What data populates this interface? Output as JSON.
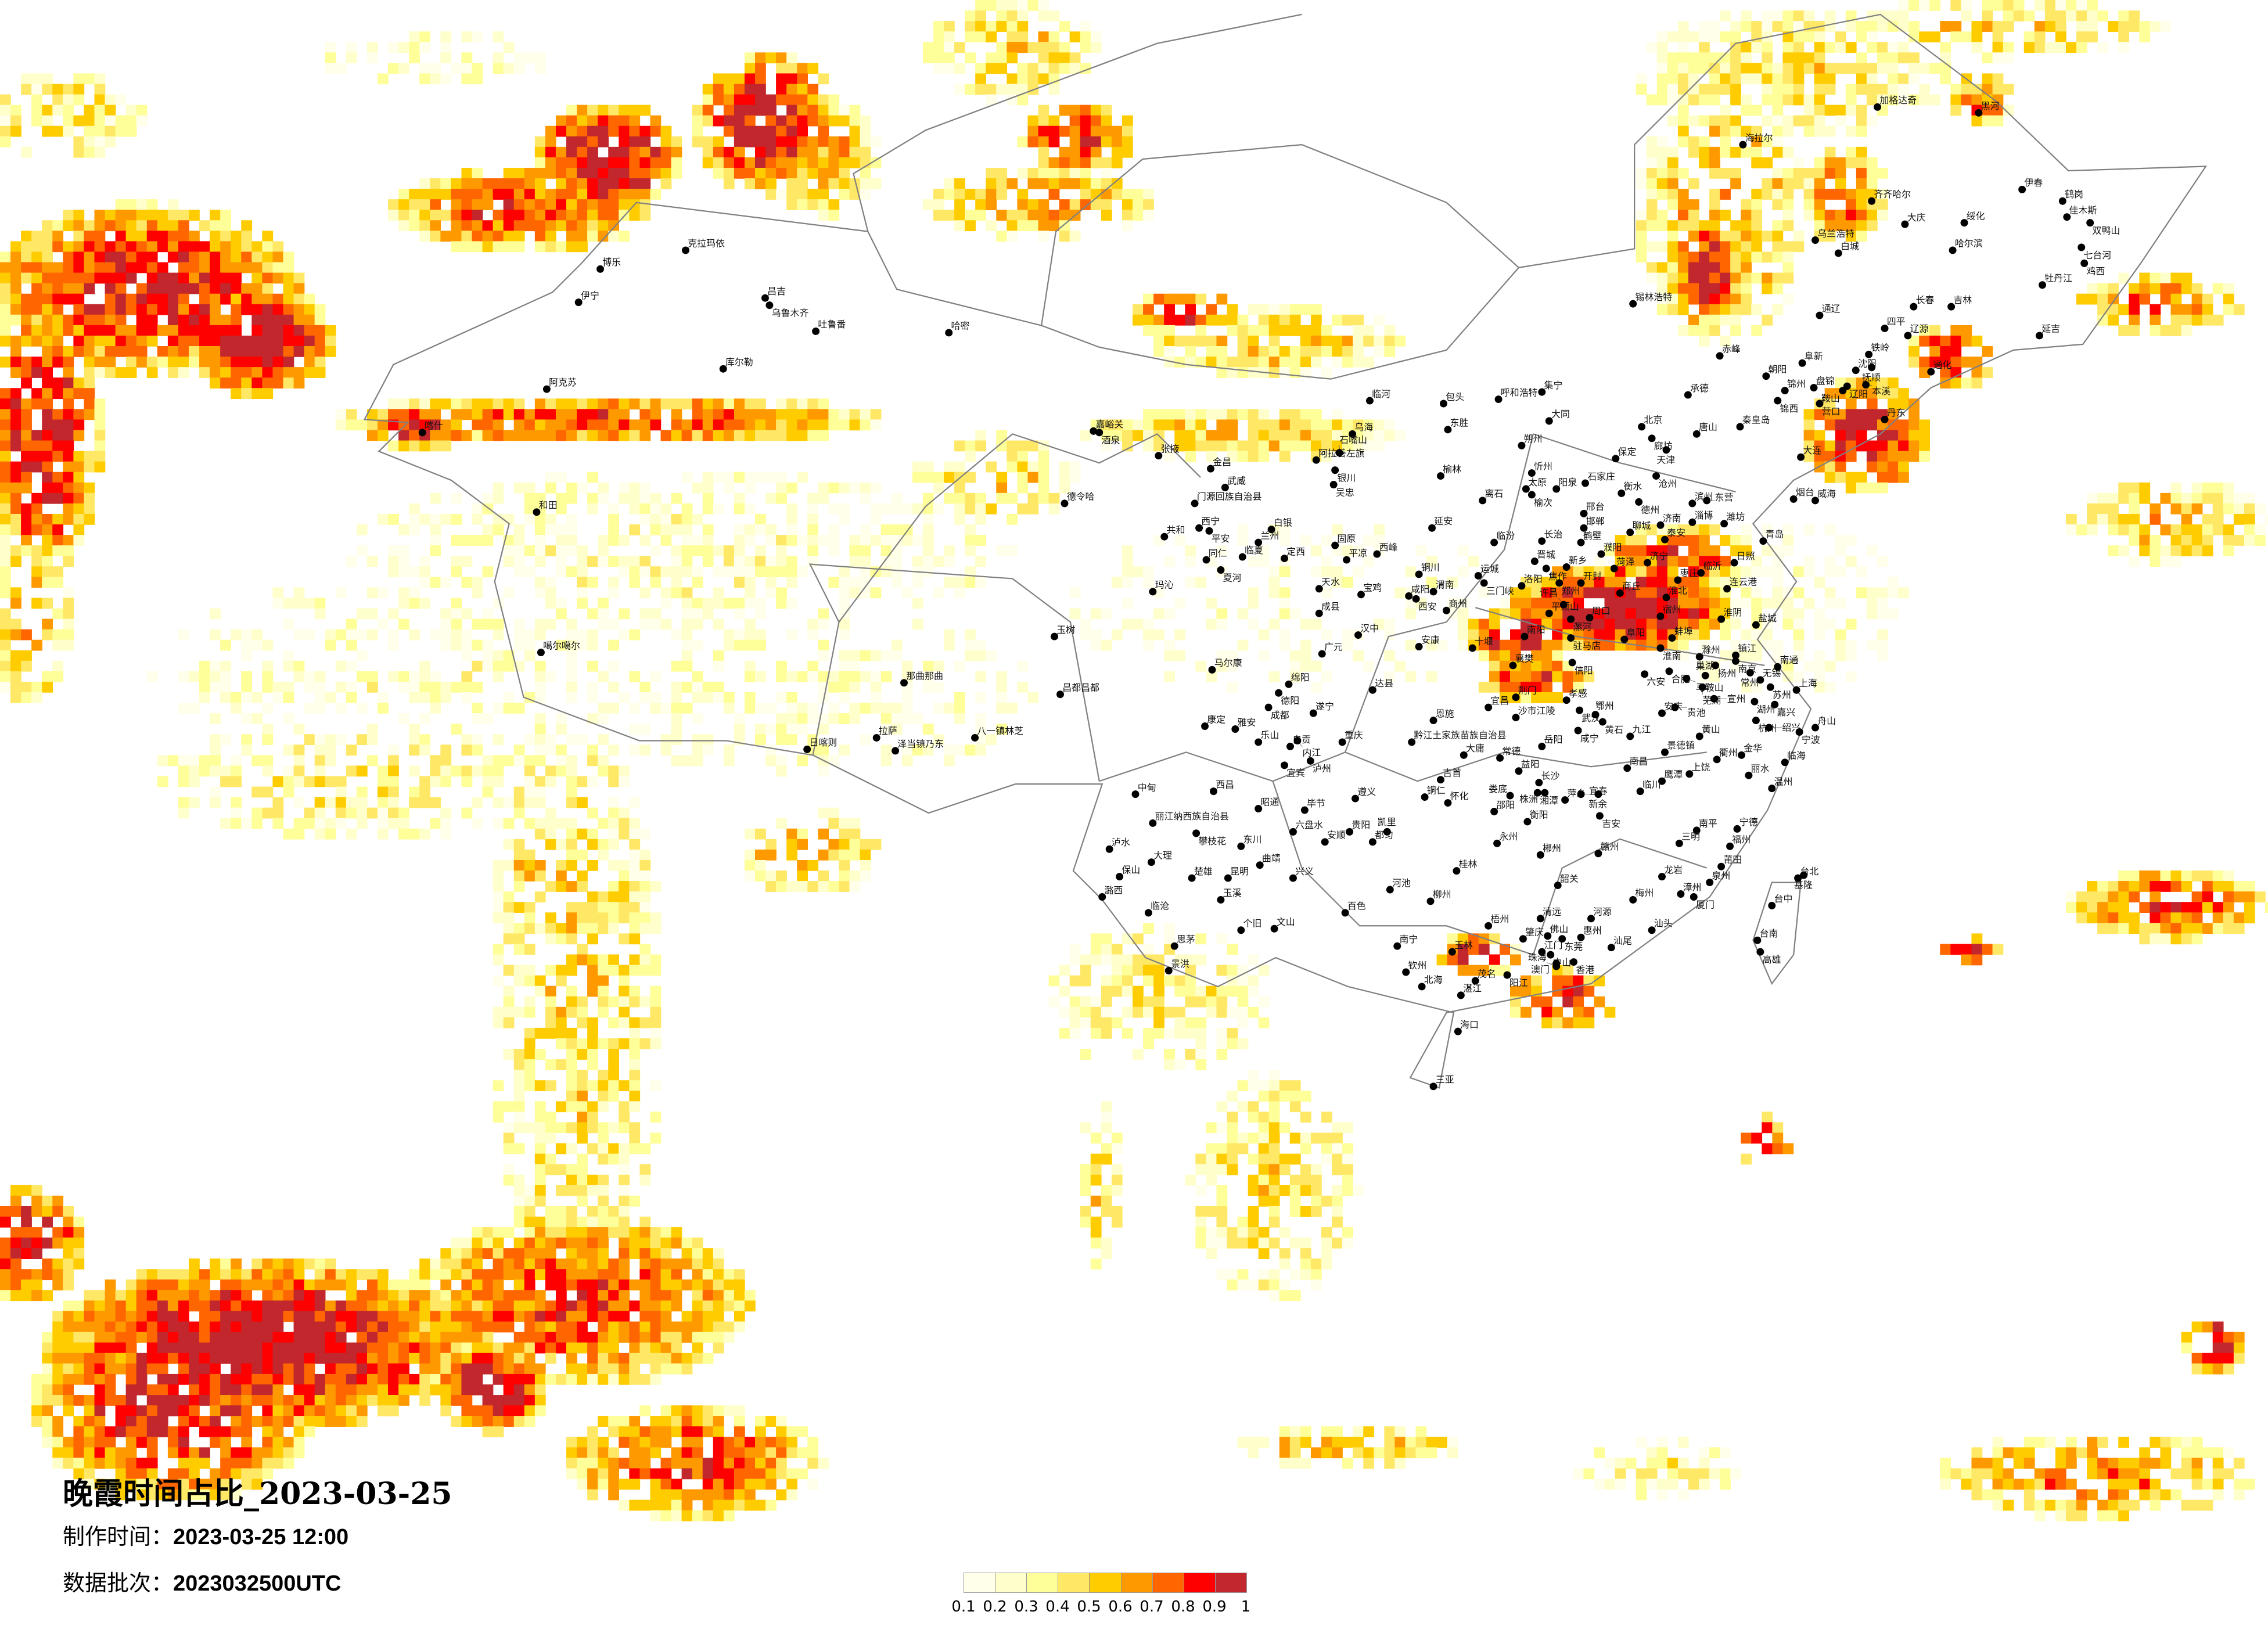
{
  "title": "晚霞时间占比_2023-03-25",
  "meta": {
    "made_label": "制作时间：",
    "made_value": "2023-03-25 12:00",
    "batch_label": "数据批次：",
    "batch_value": "2023032500UTC"
  },
  "legend": {
    "labels": [
      "0.1",
      "0.2",
      "0.3",
      "0.4",
      "0.5",
      "0.6",
      "0.7",
      "0.8",
      "0.9",
      "1"
    ],
    "colors": [
      "#FFFFEA",
      "#FFFFCC",
      "#FFFF99",
      "#FFE866",
      "#FFCC00",
      "#FF9900",
      "#FF6600",
      "#FF0000",
      "#C1272D"
    ]
  },
  "map": {
    "border_color": "#808080",
    "city_dot_color": "#000000"
  },
  "cities": [
    "克拉玛依",
    "博乐",
    "伊宁",
    "昌吉",
    "乌鲁木齐",
    "吐鲁番",
    "哈密",
    "库尔勒",
    "阿克苏",
    "喀什",
    "和田",
    "噶尔噶尔",
    "那曲那曲",
    "拉萨",
    "日喀则",
    "泽当镇乃东",
    "八一镇林芝",
    "嘉峪关",
    "酒泉",
    "张掖",
    "金昌",
    "武威",
    "门源回族自治县",
    "德令哈",
    "西宁",
    "平安",
    "共和",
    "白银",
    "兰州",
    "临夏",
    "同仁",
    "夏河",
    "定西",
    "玛沁",
    "乌海",
    "阿拉善左旗",
    "石嘴山",
    "银川",
    "吴忠",
    "临河",
    "包头",
    "呼和浩特",
    "集宁",
    "东胜",
    "大同",
    "朔州",
    "忻州",
    "太原",
    "榆次",
    "榆林",
    "离石",
    "延安",
    "固原",
    "平凉",
    "西峰",
    "铜川",
    "天水",
    "宝鸡",
    "咸阳",
    "西安",
    "渭南",
    "商州",
    "临汾",
    "长治",
    "晋城",
    "运城",
    "三门峡",
    "洛阳",
    "平顶山",
    "南阳",
    "十堰",
    "襄樊",
    "安康",
    "汉中",
    "成县",
    "广元",
    "马尔康",
    "玉树",
    "昌都昌都",
    "绵阳",
    "德阳",
    "成都",
    "达县",
    "遂宁",
    "荆门",
    "宜昌",
    "沙市江陵",
    "恩施",
    "康定",
    "雅安",
    "乐山",
    "自贡",
    "内江",
    "重庆",
    "宜宾",
    "泸州",
    "黔江土家族苗族自治县",
    "大庸",
    "常德",
    "岳阳",
    "益阳",
    "吉首",
    "加格达奇",
    "黑河",
    "海拉尔",
    "齐齐哈尔",
    "大庆",
    "绥化",
    "哈尔滨",
    "伊春",
    "鹤岗",
    "佳木斯",
    "双鸭山",
    "七台河",
    "鸡西",
    "牡丹江",
    "乌兰浩特",
    "白城",
    "锡林浩特",
    "通辽",
    "长春",
    "吉林",
    "四平",
    "辽源",
    "延吉",
    "赤峰",
    "铁岭",
    "阜新",
    "沈阳",
    "抚顺",
    "朝阳",
    "通化",
    "锦州",
    "盘锦",
    "辽阳",
    "鞍山",
    "本溪",
    "营口",
    "锦西",
    "承德",
    "秦皇岛",
    "北京",
    "唐山",
    "丹东",
    "廊坊",
    "天津",
    "保定",
    "沧州",
    "石家庄",
    "阳泉",
    "衡水",
    "德州",
    "邢台",
    "邯郸",
    "鹤壁",
    "濮阳",
    "聊城",
    "济南",
    "泰安",
    "淄博",
    "滨州",
    "东营",
    "潍坊",
    "烟台",
    "威海",
    "大连",
    "青岛",
    "日照",
    "临沂",
    "枣庄",
    "济宁",
    "菏泽",
    "新乡",
    "焦作",
    "郑州",
    "开封",
    "商丘",
    "许昌",
    "连云港",
    "淮北",
    "宿州",
    "漯河",
    "周口",
    "驻马店",
    "阜阳",
    "蚌埠",
    "淮南",
    "淮阴",
    "盐城",
    "信阳",
    "六安",
    "合肥",
    "滁州",
    "扬州",
    "镇江",
    "南京",
    "常州",
    "无锡",
    "南通",
    "苏州",
    "上海",
    "湖州",
    "嘉兴",
    "杭州",
    "绍兴",
    "宁波",
    "舟山",
    "巢湖",
    "马鞍山",
    "芜湖",
    "宣州",
    "安庆",
    "贵池",
    "孝感",
    "武汉",
    "鄂州",
    "黄石",
    "咸宁",
    "九江",
    "黄山",
    "景德镇",
    "衢州",
    "金华",
    "临海",
    "丽水",
    "温州",
    "南昌",
    "鹰潭",
    "上饶",
    "临川",
    "长沙",
    "湘潭",
    "株洲",
    "娄底",
    "萍乡",
    "宜春",
    "新余",
    "吉安",
    "衡阳",
    "郴州",
    "赣州",
    "南平",
    "三明",
    "宁德",
    "福州",
    "莆田",
    "泉州",
    "龙岩",
    "漳州",
    "厦门",
    "梅州",
    "韶关",
    "清远",
    "河源",
    "汕头",
    "汕尾",
    "惠州",
    "东莞",
    "佛山",
    "肇庆",
    "江门",
    "中山",
    "香港",
    "澳门",
    "珠海",
    "台北",
    "基隆",
    "台中",
    "台南",
    "高雄",
    "中甸",
    "西昌",
    "丽江纳西族自治县",
    "攀枝花",
    "泸水",
    "大理",
    "保山",
    "楚雄",
    "昆明",
    "潞西",
    "临沧",
    "玉溪",
    "个旧",
    "文山",
    "思茅",
    "景洪",
    "东川",
    "曲靖",
    "昭通",
    "毕节",
    "六盘水",
    "安顺",
    "贵阳",
    "都匀",
    "凯里",
    "遵义",
    "兴义",
    "铜仁",
    "怀化",
    "邵阳",
    "永州",
    "桂林",
    "河池",
    "柳州",
    "百色",
    "南宁",
    "玉林",
    "梧州",
    "钦州",
    "北海",
    "茂名",
    "湛江",
    "阳江",
    "海口",
    "三亚"
  ]
}
